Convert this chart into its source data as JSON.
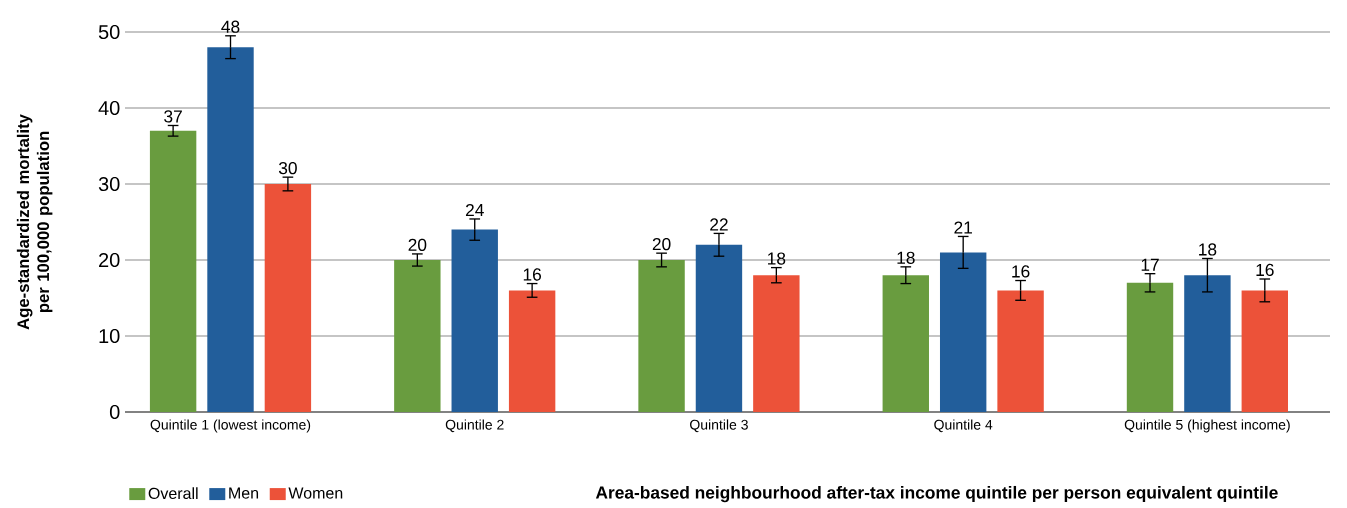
{
  "chart_data": {
    "type": "bar",
    "xlabel": "Area-based neighbourhood after-tax income quintile per person equivalent quintile",
    "ylabel": "Age-standardized mortality per 100,000 population",
    "categories": [
      "Quintile 1 (lowest income)",
      "Quintile 2",
      "Quintile 3",
      "Quintile 4",
      "Quintile 5 (highest income)"
    ],
    "series": [
      {
        "name": "Overall",
        "color": "#699c3f",
        "values": [
          37,
          20,
          20,
          18,
          17
        ],
        "errors": [
          0.7,
          0.8,
          0.9,
          1.1,
          1.2
        ]
      },
      {
        "name": "Men",
        "color": "#225e9b",
        "values": [
          48,
          24,
          22,
          21,
          18
        ],
        "errors": [
          1.5,
          1.4,
          1.5,
          2.1,
          2.2
        ]
      },
      {
        "name": "Women",
        "color": "#ec5239",
        "values": [
          30,
          16,
          18,
          16,
          16
        ],
        "errors": [
          0.9,
          0.9,
          1.0,
          1.3,
          1.5
        ]
      }
    ],
    "ylim": [
      0,
      50
    ],
    "yticks": [
      0,
      10,
      20,
      30,
      40,
      50
    ],
    "grid": "y",
    "legend": "bottom left",
    "data_labels": true
  }
}
